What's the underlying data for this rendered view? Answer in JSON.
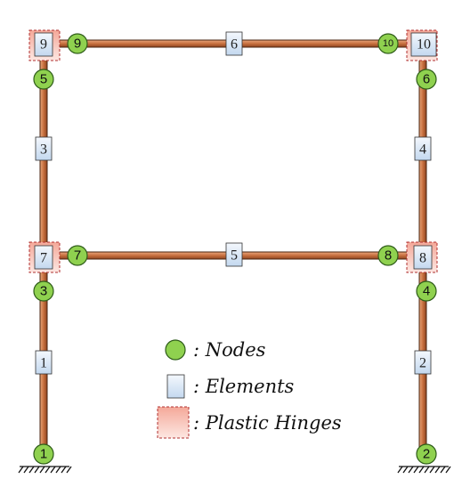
{
  "frame": {
    "nodes": [
      {
        "id": "1"
      },
      {
        "id": "2"
      },
      {
        "id": "3"
      },
      {
        "id": "4"
      },
      {
        "id": "5"
      },
      {
        "id": "6"
      },
      {
        "id": "7"
      },
      {
        "id": "8"
      },
      {
        "id": "9"
      },
      {
        "id": "10"
      }
    ],
    "elements": [
      {
        "id": "1"
      },
      {
        "id": "2"
      },
      {
        "id": "3"
      },
      {
        "id": "4"
      },
      {
        "id": "5"
      },
      {
        "id": "6"
      },
      {
        "id": "7"
      },
      {
        "id": "8"
      },
      {
        "id": "9"
      },
      {
        "id": "10"
      }
    ]
  },
  "legend": {
    "nodes_label": ": Nodes",
    "elements_label": ": Elements",
    "hinges_label": ": Plastic Hinges"
  },
  "colors": {
    "node_fill": "#8fd14f",
    "element_fill": "#dce9f7",
    "hinge_fill": "#f4b9ad",
    "member": "#c8703f"
  }
}
